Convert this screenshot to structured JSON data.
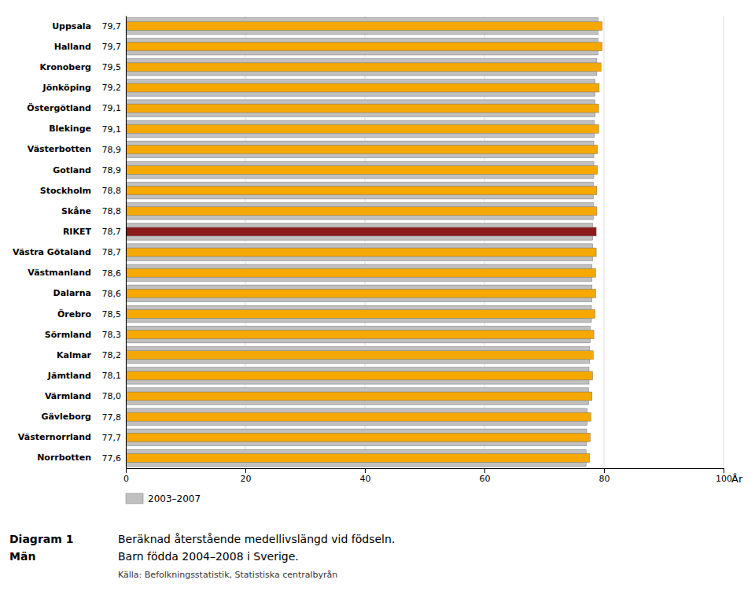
{
  "chart_data": {
    "type": "bar",
    "orientation": "horizontal",
    "title": "Diagram 1",
    "subtitle": "Män",
    "xlabel": "År",
    "annotations": [
      "Beräknad återstående medellivslängd vid födseln.",
      "Barn födda 2004–2008 i Sverige.",
      "Källa: Befolkningsstatistik, Statistiska centralbyrån"
    ],
    "categories": [
      "Uppsala",
      "Halland",
      "Kronoberg",
      "Jönköping",
      "Östergötland",
      "Blekinge",
      "Västerbotten",
      "Gotland",
      "Stockholm",
      "Skåne",
      "RIKET",
      "Västra Götaland",
      "Västmanland",
      "Dalarna",
      "Örebro",
      "Sörmland",
      "Kalmar",
      "Jämtland",
      "Värmland",
      "Gävleborg",
      "Västernorrland",
      "Norrbotten"
    ],
    "series": [
      {
        "name": "2003–2007",
        "color": "#C0C0C0",
        "values": [
          79.0,
          79.0,
          78.8,
          78.5,
          78.5,
          78.4,
          78.3,
          78.3,
          78.2,
          78.2,
          78.1,
          78.1,
          78.0,
          78.0,
          77.9,
          77.7,
          77.6,
          77.5,
          77.4,
          77.2,
          77.1,
          77.0
        ]
      },
      {
        "colors": [
          "#F5A800",
          "#F5A800",
          "#F5A800",
          "#F5A800",
          "#F5A800",
          "#F5A800",
          "#F5A800",
          "#F5A800",
          "#F5A800",
          "#F5A800",
          "#8B1A1A",
          "#F5A800",
          "#F5A800",
          "#F5A800",
          "#F5A800",
          "#F5A800",
          "#F5A800",
          "#F5A800",
          "#F5A800",
          "#F5A800",
          "#F5A800",
          "#F5A800"
        ],
        "values": [
          79.7,
          79.7,
          79.5,
          79.2,
          79.1,
          79.1,
          78.9,
          78.9,
          78.8,
          78.8,
          78.7,
          78.7,
          78.6,
          78.6,
          78.5,
          78.3,
          78.2,
          78.1,
          78.0,
          77.8,
          77.7,
          77.6
        ],
        "value_labels": [
          "79,7",
          "79,7",
          "79,5",
          "79,2",
          "79,1",
          "79,1",
          "78,9",
          "78,9",
          "78,8",
          "78,8",
          "78,7",
          "78,7",
          "78,6",
          "78,6",
          "78,5",
          "78,3",
          "78,2",
          "78,1",
          "78,0",
          "77,8",
          "77,7",
          "77,6"
        ]
      }
    ],
    "xlim": [
      0,
      100
    ],
    "xticks": [
      0,
      20,
      40,
      60,
      80,
      100
    ],
    "grid": true,
    "legend": "bottom",
    "data_labels": true
  }
}
